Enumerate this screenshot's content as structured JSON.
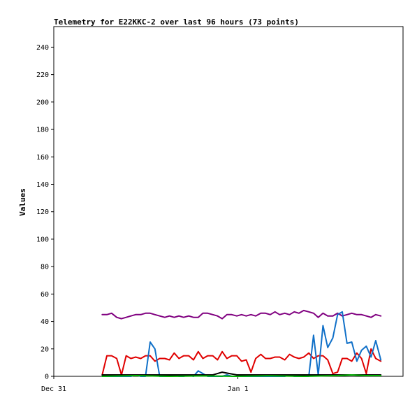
{
  "chart_data": {
    "type": "line",
    "title": "Telemetry for E22KKC-2 over last 96 hours (73 points)",
    "xlabel": "",
    "ylabel": "Values",
    "ylim": [
      0,
      255
    ],
    "xlim": [
      0,
      96
    ],
    "y_ticks": [
      0,
      20,
      40,
      60,
      80,
      100,
      120,
      140,
      160,
      180,
      200,
      220,
      240
    ],
    "x_ticks": [
      {
        "value": 0,
        "label": "Dec 31"
      },
      {
        "value": 50.6,
        "label": "Jan 1"
      }
    ],
    "grid": false,
    "legend": "none",
    "series": [
      {
        "color": "#800080",
        "x": [
          13.3,
          14.6,
          15.9,
          17.3,
          18.6,
          19.9,
          21.2,
          22.5,
          23.9,
          25.2,
          26.5,
          27.8,
          29.1,
          30.5,
          31.8,
          33.1,
          34.4,
          35.7,
          37.1,
          38.4,
          39.7,
          41.0,
          42.3,
          43.7,
          45.0,
          46.3,
          47.6,
          48.9,
          50.3,
          51.6,
          52.9,
          54.2,
          55.5,
          56.9,
          58.2,
          59.5,
          60.8,
          62.1,
          63.5,
          64.8,
          66.1,
          67.4,
          68.7,
          70.1,
          71.4,
          72.7,
          74.0,
          75.3,
          76.7,
          78.0,
          79.3,
          80.6,
          81.9,
          83.3,
          84.6,
          85.9,
          87.2,
          88.5,
          89.9
        ],
        "values": [
          45,
          45,
          46,
          43,
          42,
          43,
          44,
          45,
          45,
          46,
          46,
          45,
          44,
          43,
          44,
          43,
          44,
          43,
          44,
          43,
          43,
          46,
          46,
          45,
          44,
          42,
          45,
          45,
          44,
          45,
          44,
          45,
          44,
          46,
          46,
          45,
          47,
          45,
          46,
          45,
          47,
          46,
          48,
          47,
          46,
          43,
          46,
          44,
          44,
          46,
          44,
          45,
          46,
          45,
          45,
          44,
          43,
          45,
          44
        ]
      },
      {
        "color": "#e00000",
        "x": [
          13.3,
          14.6,
          15.9,
          17.3,
          18.6,
          19.9,
          21.2,
          22.5,
          23.9,
          25.2,
          26.5,
          27.8,
          29.1,
          30.5,
          31.8,
          33.1,
          34.4,
          35.7,
          37.1,
          38.4,
          39.7,
          41.0,
          42.3,
          43.7,
          45.0,
          46.3,
          47.6,
          48.9,
          50.3,
          51.6,
          52.9,
          54.2,
          55.5,
          56.9,
          58.2,
          59.5,
          60.8,
          62.1,
          63.5,
          64.8,
          66.1,
          67.4,
          68.7,
          70.1,
          71.4,
          72.7,
          74.0,
          75.3,
          76.7,
          78.0,
          79.3,
          80.6,
          81.9,
          83.3,
          84.6,
          85.9,
          87.2,
          88.5,
          89.9
        ],
        "values": [
          1,
          15,
          15,
          13,
          1,
          15,
          13,
          14,
          13,
          15,
          15,
          11,
          13,
          13,
          12,
          17,
          13,
          15,
          15,
          12,
          18,
          13,
          15,
          15,
          12,
          18,
          13,
          15,
          15,
          11,
          12,
          3,
          13,
          16,
          13,
          13,
          14,
          14,
          12,
          16,
          14,
          13,
          14,
          17,
          13,
          15,
          15,
          12,
          2,
          3,
          13,
          13,
          11,
          17,
          13,
          2,
          20,
          13,
          11
        ]
      },
      {
        "color": "#1070c8",
        "x": [
          13.3,
          14.6,
          15.9,
          17.3,
          18.6,
          19.9,
          21.2,
          22.5,
          23.9,
          25.2,
          26.5,
          27.8,
          29.1,
          30.5,
          31.8,
          33.1,
          34.4,
          35.7,
          37.1,
          38.4,
          39.7,
          41.0,
          42.3,
          43.7,
          45.0,
          46.3,
          47.6,
          48.9,
          50.3,
          51.6,
          52.9,
          54.2,
          55.5,
          56.9,
          58.2,
          59.5,
          60.8,
          62.1,
          63.5,
          64.8,
          66.1,
          67.4,
          68.7,
          70.1,
          71.4,
          72.7,
          74.0,
          75.3,
          76.7,
          78.0,
          79.3,
          80.6,
          81.9,
          83.3,
          84.6,
          85.9,
          87.2,
          88.5,
          89.9
        ],
        "values": [
          0,
          0,
          0,
          0,
          0,
          0,
          0,
          1,
          0,
          0,
          25,
          20,
          0,
          0,
          0,
          1,
          0,
          0,
          1,
          0,
          4,
          2,
          0,
          0,
          0,
          0,
          1,
          0,
          0,
          0,
          0,
          0,
          0,
          0,
          0,
          0,
          0,
          0,
          0,
          1,
          0,
          0,
          0,
          0,
          30,
          1,
          37,
          21,
          28,
          45,
          47,
          24,
          25,
          11,
          19,
          22,
          14,
          26,
          12
        ]
      },
      {
        "color": "#000000",
        "x": [
          13.3,
          22.5,
          25.2,
          27.8,
          31.8,
          35.7,
          39.7,
          41.0,
          43.7,
          46.3,
          50.3,
          54.2,
          58.2,
          62.1,
          66.1,
          70.1,
          74.0,
          78.0,
          81.9,
          85.9,
          89.9
        ],
        "values": [
          1,
          1,
          1,
          1,
          1,
          1,
          1,
          1,
          1,
          3,
          1,
          1,
          1,
          1,
          1,
          1,
          1,
          1,
          1,
          1,
          1
        ]
      },
      {
        "color": "#00b000",
        "x": [
          13.3,
          22.5,
          31.8,
          41.0,
          50.3,
          59.5,
          68.7,
          78.0,
          81.9,
          85.9,
          89.9
        ],
        "values": [
          0,
          0.5,
          0,
          0.3,
          0,
          0.4,
          0,
          0.5,
          1,
          0.5,
          0.5
        ]
      }
    ]
  }
}
